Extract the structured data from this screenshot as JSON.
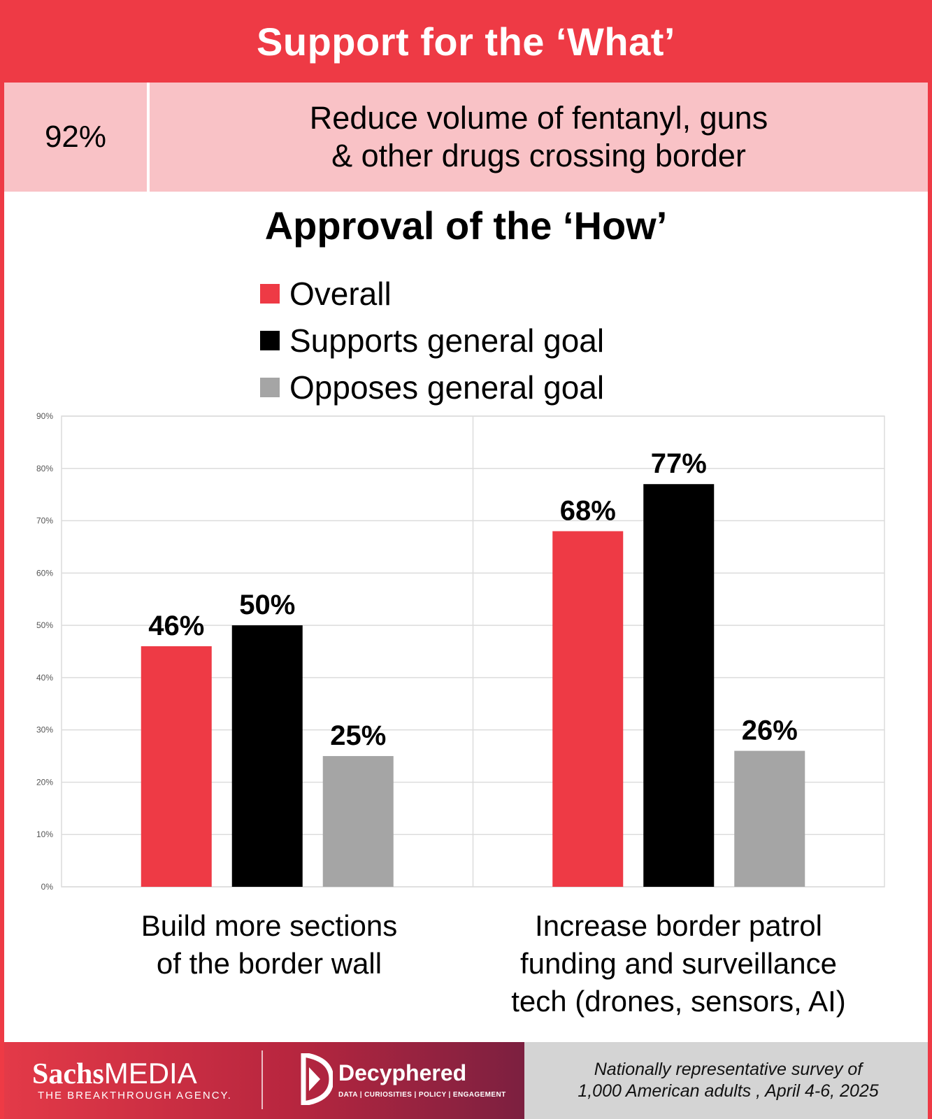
{
  "header": {
    "title": "Support for the ‘What’"
  },
  "what": {
    "percent": "92%",
    "text": "Reduce volume of fentanyl, guns\n& other drugs crossing border"
  },
  "how": {
    "title": "Approval of the ‘How’"
  },
  "legend": [
    {
      "label": "Overall",
      "color": "#ee3a45"
    },
    {
      "label": "Supports general goal",
      "color": "#000000"
    },
    {
      "label": "Opposes general goal",
      "color": "#a5a5a5"
    }
  ],
  "chart_data": {
    "type": "bar",
    "title": "Approval of the ‘How’",
    "xlabel": "",
    "ylabel": "",
    "ylim": [
      0,
      90
    ],
    "yticks": [
      "0%",
      "10%",
      "20%",
      "30%",
      "40%",
      "50%",
      "60%",
      "70%",
      "80%",
      "90%"
    ],
    "categories": [
      "Build more sections\nof the border wall",
      "Increase border patrol\nfunding and surveillance\ntech (drones, sensors, AI)"
    ],
    "series": [
      {
        "name": "Overall",
        "color": "#ee3a45",
        "values": [
          46,
          68
        ],
        "labels": [
          "46%",
          "68%"
        ]
      },
      {
        "name": "Supports general goal",
        "color": "#000000",
        "values": [
          50,
          77
        ],
        "labels": [
          "50%",
          "77%"
        ]
      },
      {
        "name": "Opposes general goal",
        "color": "#a5a5a5",
        "values": [
          25,
          26
        ],
        "labels": [
          "25%",
          "26%"
        ]
      }
    ],
    "grid": true,
    "legend_position": "top"
  },
  "footer": {
    "sachs_bold": "Sachs",
    "sachs_light": "MEDIA",
    "sachs_tagline": "THE BREAKTHROUGH AGENCY.",
    "decyphered_name": "Decyphered",
    "decyphered_tagline": "DATA | CURIOSITIES | POLICY | ENGAGEMENT",
    "source": "Nationally representative survey of\n1,000 American adults , April 4-6, 2025"
  }
}
